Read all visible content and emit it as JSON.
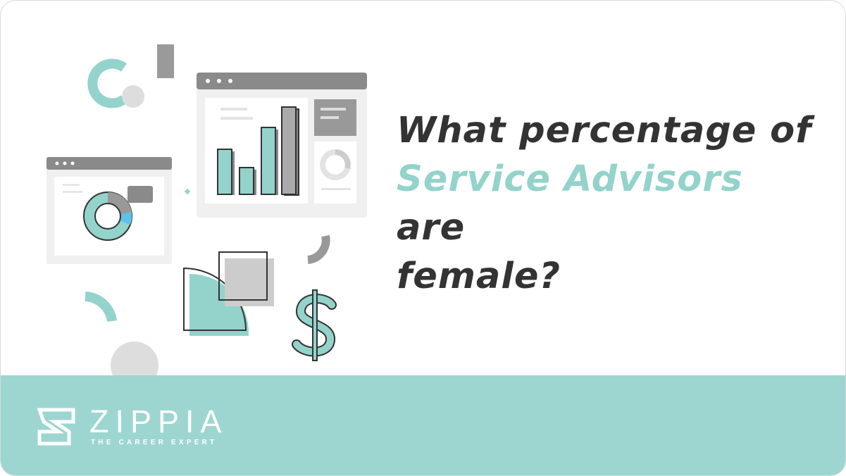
{
  "headline": {
    "line1": "What percentage of",
    "accent": "Service Advisors",
    "line2_rest": " are",
    "line3": "female?"
  },
  "brand": {
    "name": "ZIPPIA",
    "tagline": "THE CAREER EXPERT"
  },
  "colors": {
    "accent": "#93d3cc",
    "band": "#9dd6d0",
    "text": "#333333",
    "gray": "#8a8a8a"
  },
  "icons": [
    "browser-window-chart-icon",
    "donut-chart-icon",
    "dollar-sign-icon",
    "square-shape-icon",
    "quarter-circle-icon",
    "zippia-logo-icon"
  ]
}
